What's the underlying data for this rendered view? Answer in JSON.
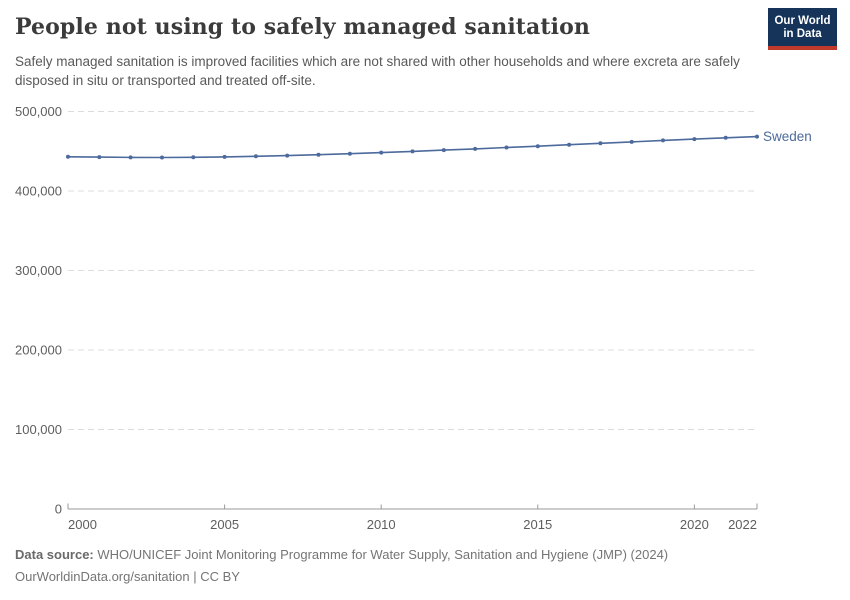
{
  "header": {
    "title": "People not using to safely managed sanitation",
    "subtitle": "Safely managed sanitation is improved facilities which are not shared with other households and where excreta are safely disposed in situ or transported and treated off-site.",
    "logo": {
      "line1": "Our World",
      "line2": "in Data"
    }
  },
  "chart_data": {
    "type": "line",
    "title": "People not using to safely managed sanitation",
    "xlabel": "",
    "ylabel": "",
    "xlim": [
      2000,
      2022
    ],
    "ylim": [
      0,
      500000
    ],
    "grid": "horizontal-dashed",
    "legend_position": "end-of-line-label",
    "x_ticks": [
      2000,
      2005,
      2010,
      2015,
      2020,
      2022
    ],
    "x_tick_labels": [
      "2000",
      "2005",
      "2010",
      "2015",
      "2020",
      "2022"
    ],
    "y_ticks": [
      0,
      100000,
      200000,
      300000,
      400000,
      500000
    ],
    "y_tick_labels": [
      "0",
      "100,000",
      "200,000",
      "300,000",
      "400,000",
      "500,000"
    ],
    "x": [
      2000,
      2001,
      2002,
      2003,
      2004,
      2005,
      2006,
      2007,
      2008,
      2009,
      2010,
      2011,
      2012,
      2013,
      2014,
      2015,
      2016,
      2017,
      2018,
      2019,
      2020,
      2021,
      2022
    ],
    "series": [
      {
        "name": "Sweden",
        "color": "#4c6a9c",
        "values": [
          443000,
          442600,
          442300,
          442200,
          442400,
          442900,
          443600,
          444500,
          445600,
          446900,
          448300,
          449800,
          451400,
          453000,
          454700,
          456400,
          458200,
          460000,
          461800,
          463600,
          465300,
          466900,
          468400
        ]
      }
    ]
  },
  "footer": {
    "source_label": "Data source:",
    "source_text": " WHO/UNICEF Joint Monitoring Programme for Water Supply, Sanitation and Hygiene (JMP) (2024)",
    "license_text": "OurWorldinData.org/sanitation | CC BY"
  },
  "colors": {
    "line": "#4c6a9c",
    "grid": "#dcdcdc",
    "axis": "#999999",
    "tick_label": "#5e5e5e",
    "logo_bg": "#16345a",
    "logo_strip": "#c0392b"
  }
}
